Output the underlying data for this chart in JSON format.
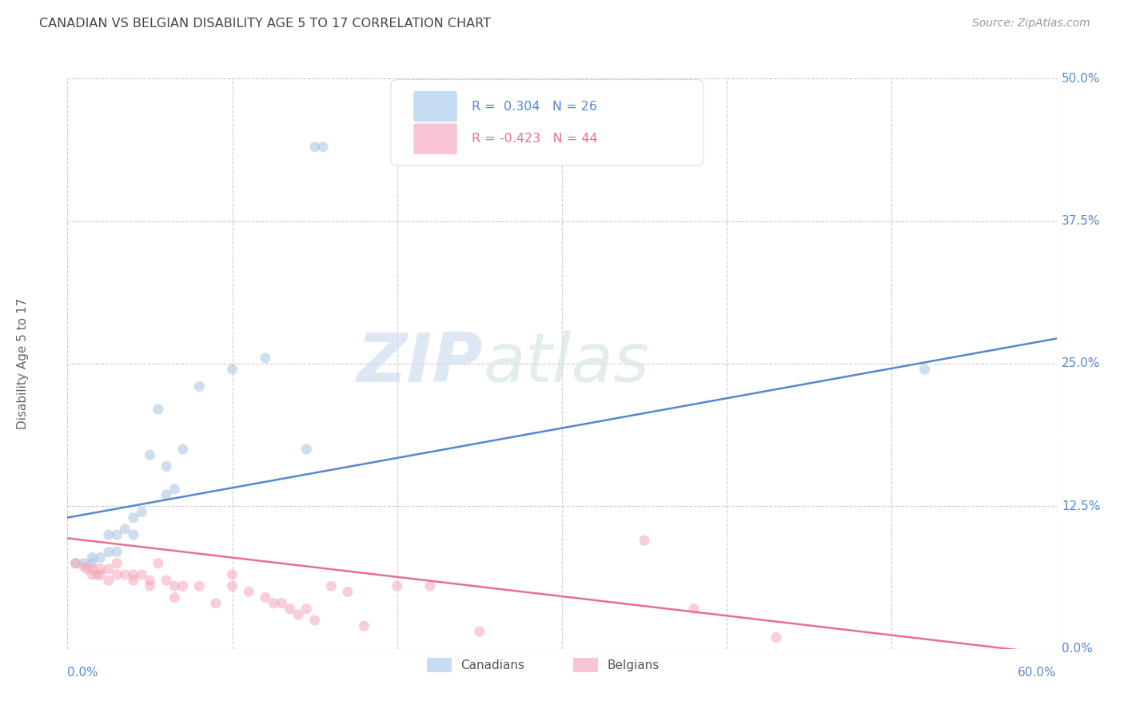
{
  "title": "CANADIAN VS BELGIAN DISABILITY AGE 5 TO 17 CORRELATION CHART",
  "source": "Source: ZipAtlas.com",
  "ylabel": "Disability Age 5 to 17",
  "xlim": [
    0.0,
    0.6
  ],
  "ylim": [
    0.0,
    0.5
  ],
  "xtick_labels_bottom": [
    "0.0%",
    "60.0%"
  ],
  "xtick_vals_bottom": [
    0.0,
    0.6
  ],
  "ytick_labels": [
    "0.0%",
    "12.5%",
    "25.0%",
    "37.5%",
    "50.0%"
  ],
  "ytick_vals": [
    0.0,
    0.125,
    0.25,
    0.375,
    0.5
  ],
  "canadian_color": "#a8c4e0",
  "belgian_color": "#f4a7b9",
  "canadian_line_color": "#5588cc",
  "belgian_line_color": "#e87090",
  "legend_box_color_canadian": "#c5dcf5",
  "legend_box_color_belgian": "#f9c5d5",
  "R_canadian": 0.304,
  "N_canadian": 26,
  "R_belgian": -0.423,
  "N_belgian": 44,
  "watermark_zip": "ZIP",
  "watermark_atlas": "atlas",
  "canadians_x": [
    0.005,
    0.01,
    0.015,
    0.015,
    0.02,
    0.025,
    0.025,
    0.03,
    0.03,
    0.035,
    0.04,
    0.04,
    0.045,
    0.05,
    0.055,
    0.06,
    0.06,
    0.065,
    0.07,
    0.08,
    0.1,
    0.12,
    0.145,
    0.15,
    0.155,
    0.52
  ],
  "canadians_y": [
    0.075,
    0.075,
    0.075,
    0.08,
    0.08,
    0.1,
    0.085,
    0.085,
    0.1,
    0.105,
    0.1,
    0.115,
    0.12,
    0.17,
    0.21,
    0.16,
    0.135,
    0.14,
    0.175,
    0.23,
    0.245,
    0.255,
    0.175,
    0.44,
    0.44,
    0.245
  ],
  "belgians_x": [
    0.005,
    0.01,
    0.012,
    0.015,
    0.015,
    0.018,
    0.02,
    0.02,
    0.025,
    0.025,
    0.03,
    0.03,
    0.035,
    0.04,
    0.04,
    0.045,
    0.05,
    0.05,
    0.055,
    0.06,
    0.065,
    0.065,
    0.07,
    0.08,
    0.09,
    0.1,
    0.1,
    0.11,
    0.12,
    0.125,
    0.13,
    0.135,
    0.14,
    0.145,
    0.15,
    0.16,
    0.17,
    0.18,
    0.2,
    0.22,
    0.25,
    0.35,
    0.38,
    0.43
  ],
  "belgians_y": [
    0.075,
    0.072,
    0.07,
    0.07,
    0.065,
    0.065,
    0.07,
    0.065,
    0.07,
    0.06,
    0.075,
    0.065,
    0.065,
    0.065,
    0.06,
    0.065,
    0.055,
    0.06,
    0.075,
    0.06,
    0.055,
    0.045,
    0.055,
    0.055,
    0.04,
    0.065,
    0.055,
    0.05,
    0.045,
    0.04,
    0.04,
    0.035,
    0.03,
    0.035,
    0.025,
    0.055,
    0.05,
    0.02,
    0.055,
    0.055,
    0.015,
    0.095,
    0.035,
    0.01
  ],
  "canadian_line_y_start": 0.115,
  "canadian_line_y_end": 0.272,
  "belgian_line_y_start": 0.097,
  "belgian_line_y_end": -0.005,
  "background_color": "#ffffff",
  "grid_color": "#cccccc",
  "axis_color": "#5588cc",
  "marker_size": 90,
  "marker_alpha": 0.55,
  "line_width": 1.8
}
